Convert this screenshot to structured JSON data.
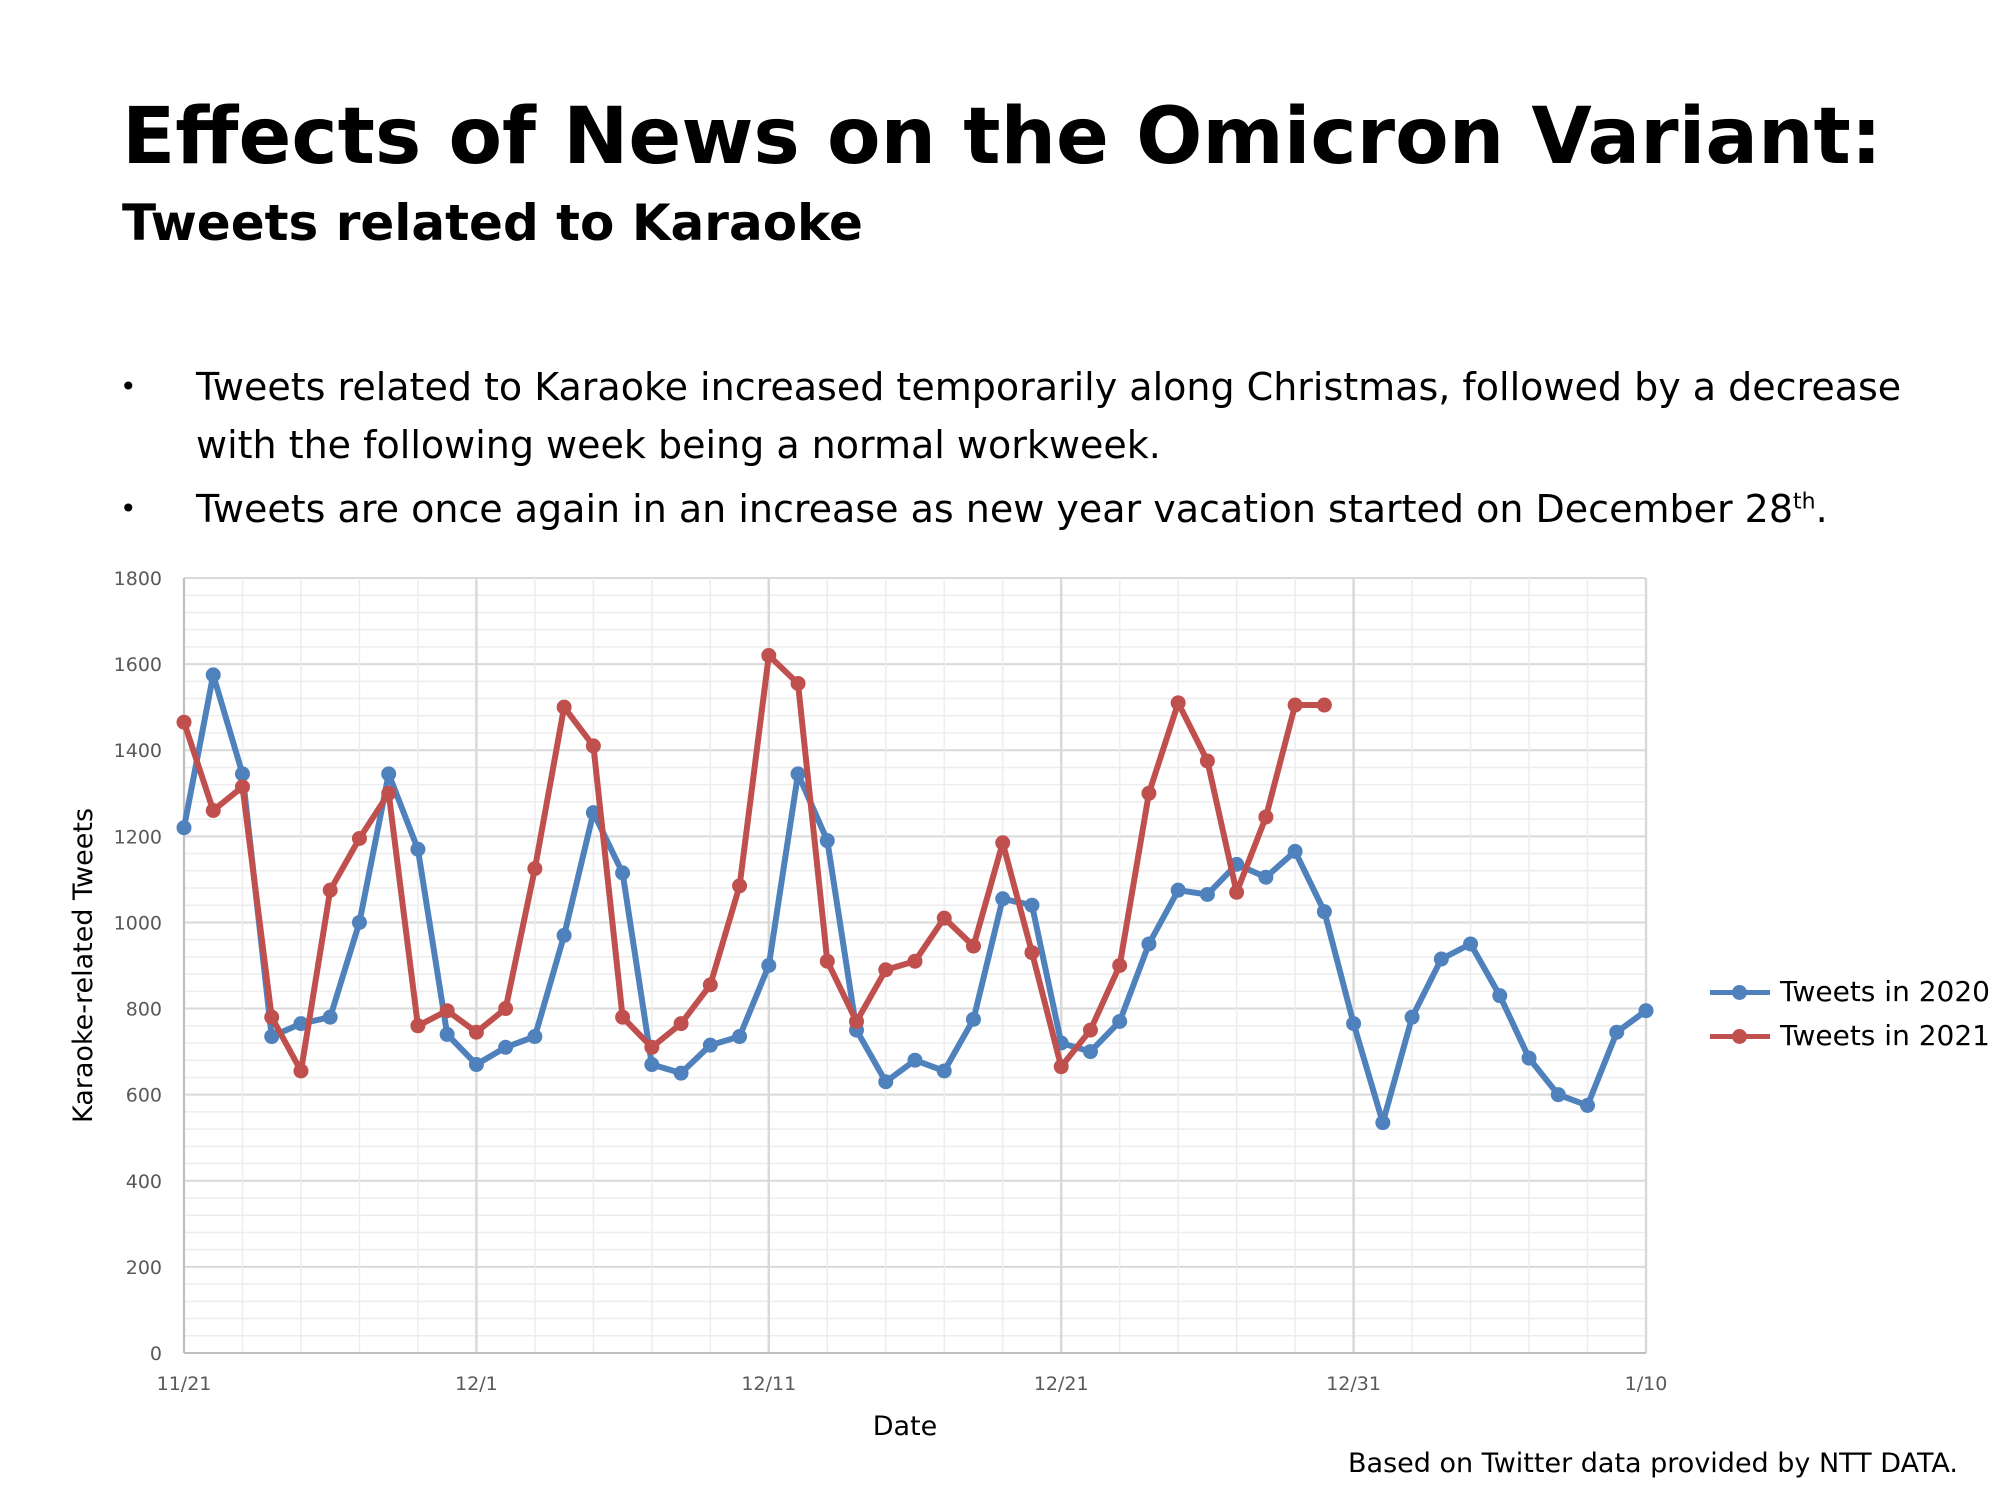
{
  "header": {
    "title": "Effects of News on the Omicron Variant:",
    "subtitle": "Tweets related to Karaoke"
  },
  "bullets": [
    {
      "marker": "•",
      "text": "Tweets related to Karaoke increased temporarily along Christmas, followed by a decrease with the following week being a normal workweek."
    },
    {
      "marker": "•",
      "text_before": "Tweets are once again in an increase as new year vacation started on December 28",
      "sup": "th",
      "text_after": "."
    }
  ],
  "source": "Based on Twitter data provided by NTT DATA.",
  "colors": {
    "series_2020": "#4F81BD",
    "series_2021": "#C0504D",
    "grid_major": "#D9D9D9",
    "grid_minor": "#EDEDED",
    "axis_text": "#595959"
  },
  "chart_data": {
    "type": "line",
    "xlabel": "Date",
    "ylabel": "Karaoke-related Tweets",
    "ylim": [
      0,
      1800
    ],
    "y_ticks": [
      0,
      200,
      400,
      600,
      800,
      1000,
      1200,
      1400,
      1600,
      1800
    ],
    "x_range": [
      "11/21",
      "1/10"
    ],
    "x_tick_labels": [
      "11/21",
      "12/1",
      "12/11",
      "12/21",
      "12/31",
      "1/10"
    ],
    "grid": true,
    "legend": "right",
    "series": [
      {
        "name": "Tweets in 2020",
        "color": "#4F81BD",
        "x": [
          "11/21",
          "11/22",
          "11/23",
          "11/24",
          "11/25",
          "11/26",
          "11/27",
          "11/28",
          "11/29",
          "11/30",
          "12/1",
          "12/2",
          "12/3",
          "12/4",
          "12/5",
          "12/6",
          "12/7",
          "12/8",
          "12/9",
          "12/10",
          "12/11",
          "12/12",
          "12/13",
          "12/14",
          "12/15",
          "12/16",
          "12/17",
          "12/18",
          "12/19",
          "12/20",
          "12/21",
          "12/22",
          "12/23",
          "12/24",
          "12/25",
          "12/26",
          "12/27",
          "12/28",
          "12/29",
          "12/30",
          "12/31",
          "1/1",
          "1/2",
          "1/3",
          "1/4",
          "1/5",
          "1/6",
          "1/7",
          "1/8",
          "1/9",
          "1/10"
        ],
        "values": [
          1220,
          1575,
          1345,
          735,
          765,
          780,
          1000,
          1345,
          1170,
          740,
          670,
          710,
          735,
          970,
          1255,
          1115,
          670,
          650,
          715,
          735,
          900,
          1345,
          1190,
          750,
          630,
          680,
          655,
          775,
          1055,
          1040,
          720,
          700,
          770,
          950,
          1075,
          1065,
          1135,
          1105,
          1165,
          1025,
          765,
          535,
          780,
          915,
          950,
          830,
          685,
          600,
          575,
          745,
          795
        ]
      },
      {
        "name": "Tweets in 2021",
        "color": "#C0504D",
        "x": [
          "11/21",
          "11/22",
          "11/23",
          "11/24",
          "11/25",
          "11/26",
          "11/27",
          "11/28",
          "11/29",
          "11/30",
          "12/1",
          "12/2",
          "12/3",
          "12/4",
          "12/5",
          "12/6",
          "12/7",
          "12/8",
          "12/9",
          "12/10",
          "12/11",
          "12/12",
          "12/13",
          "12/14",
          "12/15",
          "12/16",
          "12/17",
          "12/18",
          "12/19",
          "12/20",
          "12/21",
          "12/22",
          "12/23",
          "12/24",
          "12/25",
          "12/26",
          "12/27",
          "12/28",
          "12/29",
          "12/30"
        ],
        "values": [
          1465,
          1260,
          1315,
          780,
          655,
          1075,
          1195,
          1300,
          760,
          795,
          745,
          800,
          1125,
          1500,
          1410,
          780,
          710,
          765,
          855,
          1085,
          1620,
          1555,
          910,
          770,
          890,
          910,
          1010,
          945,
          1185,
          930,
          665,
          750,
          900,
          1300,
          1510,
          1375,
          1070,
          1245,
          1505,
          1505
        ]
      }
    ]
  }
}
